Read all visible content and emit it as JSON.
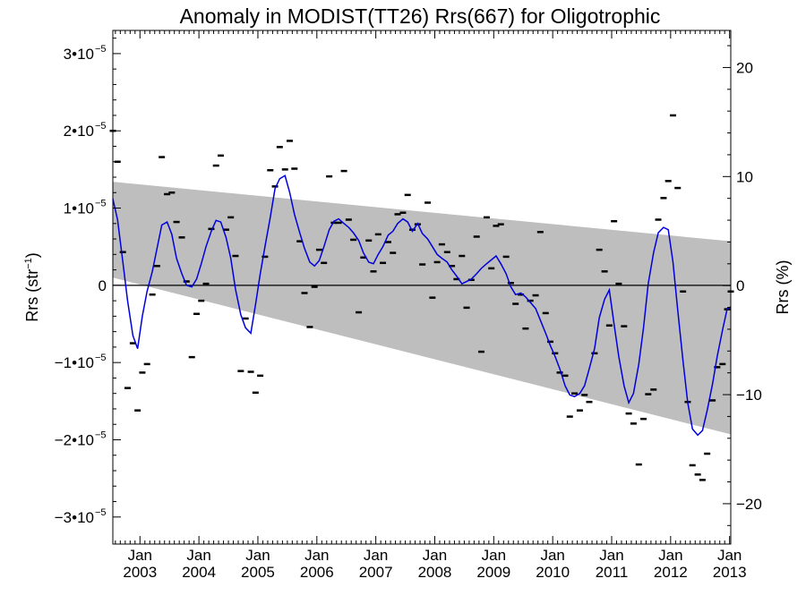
{
  "chart_data": {
    "type": "scatter",
    "title": "Anomaly in MODIST(TT26) Rrs(667) for Oligotrophic",
    "ylabel_left_main": "Rrs (str",
    "ylabel_left_sup": "−1",
    "ylabel_left_close": ")",
    "ylabel_right": "Rrs (%)",
    "xlim": [
      2002.54,
      2013.02
    ],
    "ylim": [
      -3.35e-05,
      3.3e-05
    ],
    "y2lim": [
      -23.7,
      23.4
    ],
    "grid": false,
    "x_ticks": [
      {
        "month": "Jan",
        "year": "2003",
        "x": 2003.0
      },
      {
        "month": "Jan",
        "year": "2004",
        "x": 2004.0
      },
      {
        "month": "Jan",
        "year": "2005",
        "x": 2005.0
      },
      {
        "month": "Jan",
        "year": "2006",
        "x": 2006.0
      },
      {
        "month": "Jan",
        "year": "2007",
        "x": 2007.0
      },
      {
        "month": "Jan",
        "year": "2008",
        "x": 2008.0
      },
      {
        "month": "Jan",
        "year": "2009",
        "x": 2009.0
      },
      {
        "month": "Jan",
        "year": "2010",
        "x": 2010.0
      },
      {
        "month": "Jan",
        "year": "2011",
        "x": 2011.0
      },
      {
        "month": "Jan",
        "year": "2012",
        "x": 2012.0
      },
      {
        "month": "Jan",
        "year": "2013",
        "x": 2013.0
      }
    ],
    "y_ticks_left": [
      {
        "value": 3e-05,
        "label": "3•10",
        "exp": "−5"
      },
      {
        "value": 2e-05,
        "label": "2•10",
        "exp": "−5"
      },
      {
        "value": 1e-05,
        "label": "1•10",
        "exp": "−5"
      },
      {
        "value": 0,
        "label": "0",
        "exp": ""
      },
      {
        "value": -1e-05,
        "label": "−1•10",
        "exp": "−5"
      },
      {
        "value": -2e-05,
        "label": "−2•10",
        "exp": "−5"
      },
      {
        "value": -3e-05,
        "label": "−3•10",
        "exp": "−5"
      }
    ],
    "y_ticks_right": [
      {
        "value": 20,
        "label": "20"
      },
      {
        "value": 10,
        "label": "10"
      },
      {
        "value": 0,
        "label": "0"
      },
      {
        "value": -10,
        "label": "−10"
      },
      {
        "value": -20,
        "label": "−20"
      }
    ],
    "band": {
      "color": "#bebebe",
      "upper": [
        [
          2002.54,
          1.34e-05
        ],
        [
          2013.02,
          5.7e-06
        ]
      ],
      "lower": [
        [
          2002.54,
          1e-06
        ],
        [
          2013.02,
          -1.93e-05
        ]
      ]
    },
    "zero_line": 0,
    "points_color": "#000000",
    "line_color": "#0000dd",
    "series": [
      {
        "type": "scatter",
        "points": [
          [
            2002.54,
            2e-05
          ],
          [
            2002.62,
            1.6e-05
          ],
          [
            2002.71,
            4.3e-06
          ],
          [
            2002.79,
            -1.33e-05
          ],
          [
            2002.88,
            -7.5e-06
          ],
          [
            2002.96,
            -1.62e-05
          ],
          [
            2003.04,
            -1.13e-05
          ],
          [
            2003.12,
            -1.02e-05
          ],
          [
            2003.21,
            -1.2e-06
          ],
          [
            2003.29,
            2.5e-06
          ],
          [
            2003.37,
            1.66e-05
          ],
          [
            2003.46,
            1.18e-05
          ],
          [
            2003.54,
            1.2e-05
          ],
          [
            2003.62,
            8.2e-06
          ],
          [
            2003.71,
            6.2e-06
          ],
          [
            2003.79,
            5e-07
          ],
          [
            2003.88,
            -9.3e-06
          ],
          [
            2003.96,
            -3.7e-06
          ],
          [
            2004.04,
            -2e-06
          ],
          [
            2004.12,
            2e-07
          ],
          [
            2004.21,
            7.3e-06
          ],
          [
            2004.29,
            1.55e-05
          ],
          [
            2004.37,
            1.68e-05
          ],
          [
            2004.46,
            7.2e-06
          ],
          [
            2004.54,
            8.8e-06
          ],
          [
            2004.62,
            3.8e-06
          ],
          [
            2004.71,
            -1.11e-05
          ],
          [
            2004.79,
            -4.3e-06
          ],
          [
            2004.88,
            -1.12e-05
          ],
          [
            2004.96,
            -1.39e-05
          ],
          [
            2005.04,
            -1.17e-05
          ],
          [
            2005.12,
            3.7e-06
          ],
          [
            2005.21,
            1.49e-05
          ],
          [
            2005.29,
            1.28e-05
          ],
          [
            2005.37,
            1.79e-05
          ],
          [
            2005.46,
            1.5e-05
          ],
          [
            2005.54,
            1.87e-05
          ],
          [
            2005.62,
            1.51e-05
          ],
          [
            2005.71,
            5.7e-06
          ],
          [
            2005.79,
            -1e-06
          ],
          [
            2005.88,
            -5.4e-06
          ],
          [
            2005.96,
            -2e-07
          ],
          [
            2006.04,
            4.6e-06
          ],
          [
            2006.12,
            2.9e-06
          ],
          [
            2006.21,
            1.41e-05
          ],
          [
            2006.29,
            8.1e-06
          ],
          [
            2006.37,
            8.1e-06
          ],
          [
            2006.46,
            1.48e-05
          ],
          [
            2006.54,
            8.5e-06
          ],
          [
            2006.62,
            5.9e-06
          ],
          [
            2006.71,
            -3.5e-06
          ],
          [
            2006.79,
            3.6e-06
          ],
          [
            2006.88,
            5.8e-06
          ],
          [
            2006.96,
            1.8e-06
          ],
          [
            2007.04,
            6.6e-06
          ],
          [
            2007.12,
            2.9e-06
          ],
          [
            2007.21,
            5.6e-06
          ],
          [
            2007.29,
            4.2e-06
          ],
          [
            2007.37,
            9.2e-06
          ],
          [
            2007.46,
            9.4e-06
          ],
          [
            2007.54,
            1.17e-05
          ],
          [
            2007.62,
            7.2e-06
          ],
          [
            2007.71,
            7.9e-06
          ],
          [
            2007.79,
            2.7e-06
          ],
          [
            2007.88,
            1.07e-05
          ],
          [
            2007.96,
            -1.6e-06
          ],
          [
            2008.04,
            3e-06
          ],
          [
            2008.12,
            5.3e-06
          ],
          [
            2008.21,
            4.3e-06
          ],
          [
            2008.29,
            2.5e-06
          ],
          [
            2008.37,
            8e-07
          ],
          [
            2008.46,
            3.8e-06
          ],
          [
            2008.54,
            -2.9e-06
          ],
          [
            2008.62,
            7e-07
          ],
          [
            2008.71,
            6.3e-06
          ],
          [
            2008.79,
            -8.6e-06
          ],
          [
            2008.88,
            8.8e-06
          ],
          [
            2008.96,
            2.2e-06
          ],
          [
            2009.04,
            7.7e-06
          ],
          [
            2009.12,
            7.9e-06
          ],
          [
            2009.21,
            3.7e-06
          ],
          [
            2009.29,
            3e-07
          ],
          [
            2009.37,
            -2.4e-06
          ],
          [
            2009.46,
            -1.2e-06
          ],
          [
            2009.54,
            -5.6e-06
          ],
          [
            2009.62,
            -2e-06
          ],
          [
            2009.71,
            -1.3e-06
          ],
          [
            2009.79,
            6.9e-06
          ],
          [
            2009.88,
            -3.6e-06
          ],
          [
            2009.96,
            -7.3e-06
          ],
          [
            2010.04,
            -8.8e-06
          ],
          [
            2010.12,
            -1.13e-05
          ],
          [
            2010.21,
            -1.17e-05
          ],
          [
            2010.29,
            -1.7e-05
          ],
          [
            2010.37,
            -1.4e-05
          ],
          [
            2010.46,
            -1.62e-05
          ],
          [
            2010.54,
            -1.42e-05
          ],
          [
            2010.62,
            -1.51e-05
          ],
          [
            2010.71,
            -8.8e-06
          ],
          [
            2010.79,
            4.6e-06
          ],
          [
            2010.88,
            1.8e-06
          ],
          [
            2010.96,
            -5.2e-06
          ],
          [
            2011.04,
            8.3e-06
          ],
          [
            2011.12,
            2e-07
          ],
          [
            2011.21,
            -5.3e-06
          ],
          [
            2011.29,
            -1.66e-05
          ],
          [
            2011.37,
            -1.79e-05
          ],
          [
            2011.46,
            -2.32e-05
          ],
          [
            2011.54,
            -1.73e-05
          ],
          [
            2011.62,
            -1.41e-05
          ],
          [
            2011.71,
            -1.35e-05
          ],
          [
            2011.79,
            8.5e-06
          ],
          [
            2011.88,
            1.13e-05
          ],
          [
            2011.96,
            1.35e-05
          ],
          [
            2012.04,
            2.2e-05
          ],
          [
            2012.12,
            1.26e-05
          ],
          [
            2012.21,
            -8e-07
          ],
          [
            2012.29,
            -1.51e-05
          ],
          [
            2012.37,
            -2.33e-05
          ],
          [
            2012.46,
            -2.45e-05
          ],
          [
            2012.54,
            -2.52e-05
          ],
          [
            2012.62,
            -2.18e-05
          ],
          [
            2012.71,
            -1.49e-05
          ],
          [
            2012.79,
            -1.06e-05
          ],
          [
            2012.88,
            -1.02e-05
          ],
          [
            2012.96,
            -3.1e-06
          ],
          [
            2013.02,
            -8e-07
          ]
        ]
      },
      {
        "type": "line",
        "points": [
          [
            2002.54,
            1.12e-05
          ],
          [
            2002.62,
            8.5e-06
          ],
          [
            2002.71,
            3e-06
          ],
          [
            2002.79,
            -2e-06
          ],
          [
            2002.88,
            -6.5e-06
          ],
          [
            2002.96,
            -8.2e-06
          ],
          [
            2003.04,
            -4e-06
          ],
          [
            2003.12,
            -8e-07
          ],
          [
            2003.21,
            1.8e-06
          ],
          [
            2003.29,
            4.8e-06
          ],
          [
            2003.37,
            7.8e-06
          ],
          [
            2003.46,
            8.2e-06
          ],
          [
            2003.54,
            6.6e-06
          ],
          [
            2003.62,
            3.5e-06
          ],
          [
            2003.71,
            1.5e-06
          ],
          [
            2003.79,
            0.0
          ],
          [
            2003.88,
            -2e-07
          ],
          [
            2003.96,
            8e-07
          ],
          [
            2004.04,
            2.8e-06
          ],
          [
            2004.12,
            5e-06
          ],
          [
            2004.21,
            7e-06
          ],
          [
            2004.29,
            8.4e-06
          ],
          [
            2004.37,
            8.2e-06
          ],
          [
            2004.46,
            6.2e-06
          ],
          [
            2004.54,
            3.5e-06
          ],
          [
            2004.62,
            -5e-07
          ],
          [
            2004.71,
            -3.8e-06
          ],
          [
            2004.79,
            -5.5e-06
          ],
          [
            2004.88,
            -6.2e-06
          ],
          [
            2004.96,
            -2.5e-06
          ],
          [
            2005.04,
            1.5e-06
          ],
          [
            2005.12,
            5e-06
          ],
          [
            2005.21,
            8.8e-06
          ],
          [
            2005.29,
            1.25e-05
          ],
          [
            2005.37,
            1.38e-05
          ],
          [
            2005.46,
            1.42e-05
          ],
          [
            2005.54,
            1.2e-05
          ],
          [
            2005.62,
            9.2e-06
          ],
          [
            2005.71,
            6.8e-06
          ],
          [
            2005.79,
            4.8e-06
          ],
          [
            2005.88,
            3e-06
          ],
          [
            2005.96,
            2.5e-06
          ],
          [
            2006.04,
            3.2e-06
          ],
          [
            2006.12,
            5e-06
          ],
          [
            2006.21,
            7.2e-06
          ],
          [
            2006.29,
            8.3e-06
          ],
          [
            2006.37,
            8.6e-06
          ],
          [
            2006.46,
            8e-06
          ],
          [
            2006.54,
            7.5e-06
          ],
          [
            2006.62,
            6.8e-06
          ],
          [
            2006.71,
            5.8e-06
          ],
          [
            2006.79,
            4.2e-06
          ],
          [
            2006.88,
            3e-06
          ],
          [
            2006.96,
            2.8e-06
          ],
          [
            2007.04,
            4e-06
          ],
          [
            2007.12,
            5e-06
          ],
          [
            2007.21,
            6.5e-06
          ],
          [
            2007.29,
            7e-06
          ],
          [
            2007.37,
            8e-06
          ],
          [
            2007.46,
            8.6e-06
          ],
          [
            2007.54,
            8.2e-06
          ],
          [
            2007.62,
            7e-06
          ],
          [
            2007.71,
            8e-06
          ],
          [
            2007.79,
            6.7e-06
          ],
          [
            2007.88,
            6e-06
          ],
          [
            2007.96,
            5e-06
          ],
          [
            2008.04,
            4e-06
          ],
          [
            2008.12,
            3.5e-06
          ],
          [
            2008.21,
            3e-06
          ],
          [
            2008.29,
            2e-06
          ],
          [
            2008.37,
            1.2e-06
          ],
          [
            2008.46,
            2e-07
          ],
          [
            2008.54,
            5e-07
          ],
          [
            2008.62,
            8e-07
          ],
          [
            2008.71,
            1.5e-06
          ],
          [
            2008.79,
            2.2e-06
          ],
          [
            2008.88,
            2.8e-06
          ],
          [
            2008.96,
            3.3e-06
          ],
          [
            2009.04,
            3.8e-06
          ],
          [
            2009.12,
            2.8e-06
          ],
          [
            2009.21,
            1.5e-06
          ],
          [
            2009.29,
            -2e-07
          ],
          [
            2009.37,
            -1.2e-06
          ],
          [
            2009.46,
            -1e-06
          ],
          [
            2009.54,
            -1.5e-06
          ],
          [
            2009.62,
            -2.2e-06
          ],
          [
            2009.71,
            -3e-06
          ],
          [
            2009.79,
            -4.5e-06
          ],
          [
            2009.88,
            -6.2e-06
          ],
          [
            2009.96,
            -7.8e-06
          ],
          [
            2010.04,
            -9.2e-06
          ],
          [
            2010.12,
            -1.08e-05
          ],
          [
            2010.21,
            -1.3e-05
          ],
          [
            2010.29,
            -1.42e-05
          ],
          [
            2010.37,
            -1.44e-05
          ],
          [
            2010.46,
            -1.4e-05
          ],
          [
            2010.54,
            -1.3e-05
          ],
          [
            2010.62,
            -1.08e-05
          ],
          [
            2010.71,
            -8.2e-06
          ],
          [
            2010.79,
            -4.2e-06
          ],
          [
            2010.88,
            -1.8e-06
          ],
          [
            2010.96,
            -6e-07
          ],
          [
            2011.04,
            -5e-06
          ],
          [
            2011.12,
            -9.2e-06
          ],
          [
            2011.21,
            -1.3e-05
          ],
          [
            2011.29,
            -1.52e-05
          ],
          [
            2011.37,
            -1.4e-05
          ],
          [
            2011.46,
            -1.02e-05
          ],
          [
            2011.54,
            -5.5e-06
          ],
          [
            2011.62,
            2e-07
          ],
          [
            2011.71,
            4.2e-06
          ],
          [
            2011.79,
            6.8e-06
          ],
          [
            2011.88,
            7.5e-06
          ],
          [
            2011.96,
            7.2e-06
          ],
          [
            2012.04,
            3e-06
          ],
          [
            2012.12,
            -3.2e-06
          ],
          [
            2012.21,
            -9.8e-06
          ],
          [
            2012.29,
            -1.52e-05
          ],
          [
            2012.37,
            -1.86e-05
          ],
          [
            2012.46,
            -1.94e-05
          ],
          [
            2012.54,
            -1.88e-05
          ],
          [
            2012.62,
            -1.62e-05
          ],
          [
            2012.71,
            -1.28e-05
          ],
          [
            2012.79,
            -9.2e-06
          ],
          [
            2012.88,
            -5.8e-06
          ],
          [
            2012.96,
            -3e-06
          ],
          [
            2013.02,
            -2.8e-06
          ]
        ]
      }
    ]
  }
}
